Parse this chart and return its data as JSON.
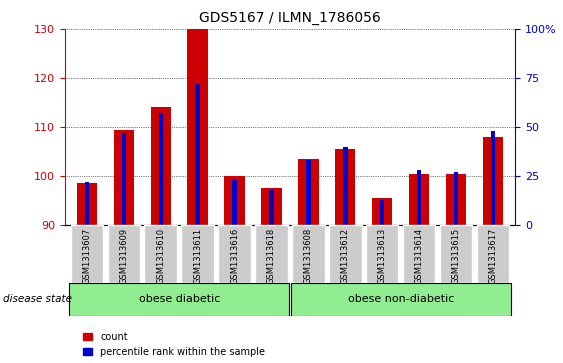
{
  "title": "GDS5167 / ILMN_1786056",
  "samples": [
    "GSM1313607",
    "GSM1313609",
    "GSM1313610",
    "GSM1313611",
    "GSM1313616",
    "GSM1313618",
    "GSM1313608",
    "GSM1313612",
    "GSM1313613",
    "GSM1313614",
    "GSM1313615",
    "GSM1313617"
  ],
  "count_values": [
    98.5,
    109.5,
    114.0,
    130.0,
    100.0,
    97.5,
    103.5,
    105.5,
    95.5,
    100.5,
    100.5,
    108.0
  ],
  "percentile_values": [
    22,
    47,
    57,
    72,
    23,
    18,
    33,
    40,
    13,
    28,
    27,
    48
  ],
  "y_min": 90,
  "y_max": 130,
  "y_ticks": [
    90,
    100,
    110,
    120,
    130
  ],
  "y2_ticks": [
    0,
    25,
    50,
    75,
    100
  ],
  "count_color": "#cc0000",
  "percentile_color": "#0000cc",
  "group1_label": "obese diabetic",
  "group2_label": "obese non-diabetic",
  "group1_indices": [
    0,
    1,
    2,
    3,
    4,
    5
  ],
  "group2_indices": [
    6,
    7,
    8,
    9,
    10,
    11
  ],
  "disease_state_label": "disease state",
  "legend_count": "count",
  "legend_pct": "percentile rank within the sample",
  "group_color": "#90ee90",
  "tick_bg_color": "#cccccc",
  "title_fontsize": 10,
  "axis_fontsize": 8,
  "label_fontsize": 7.5
}
